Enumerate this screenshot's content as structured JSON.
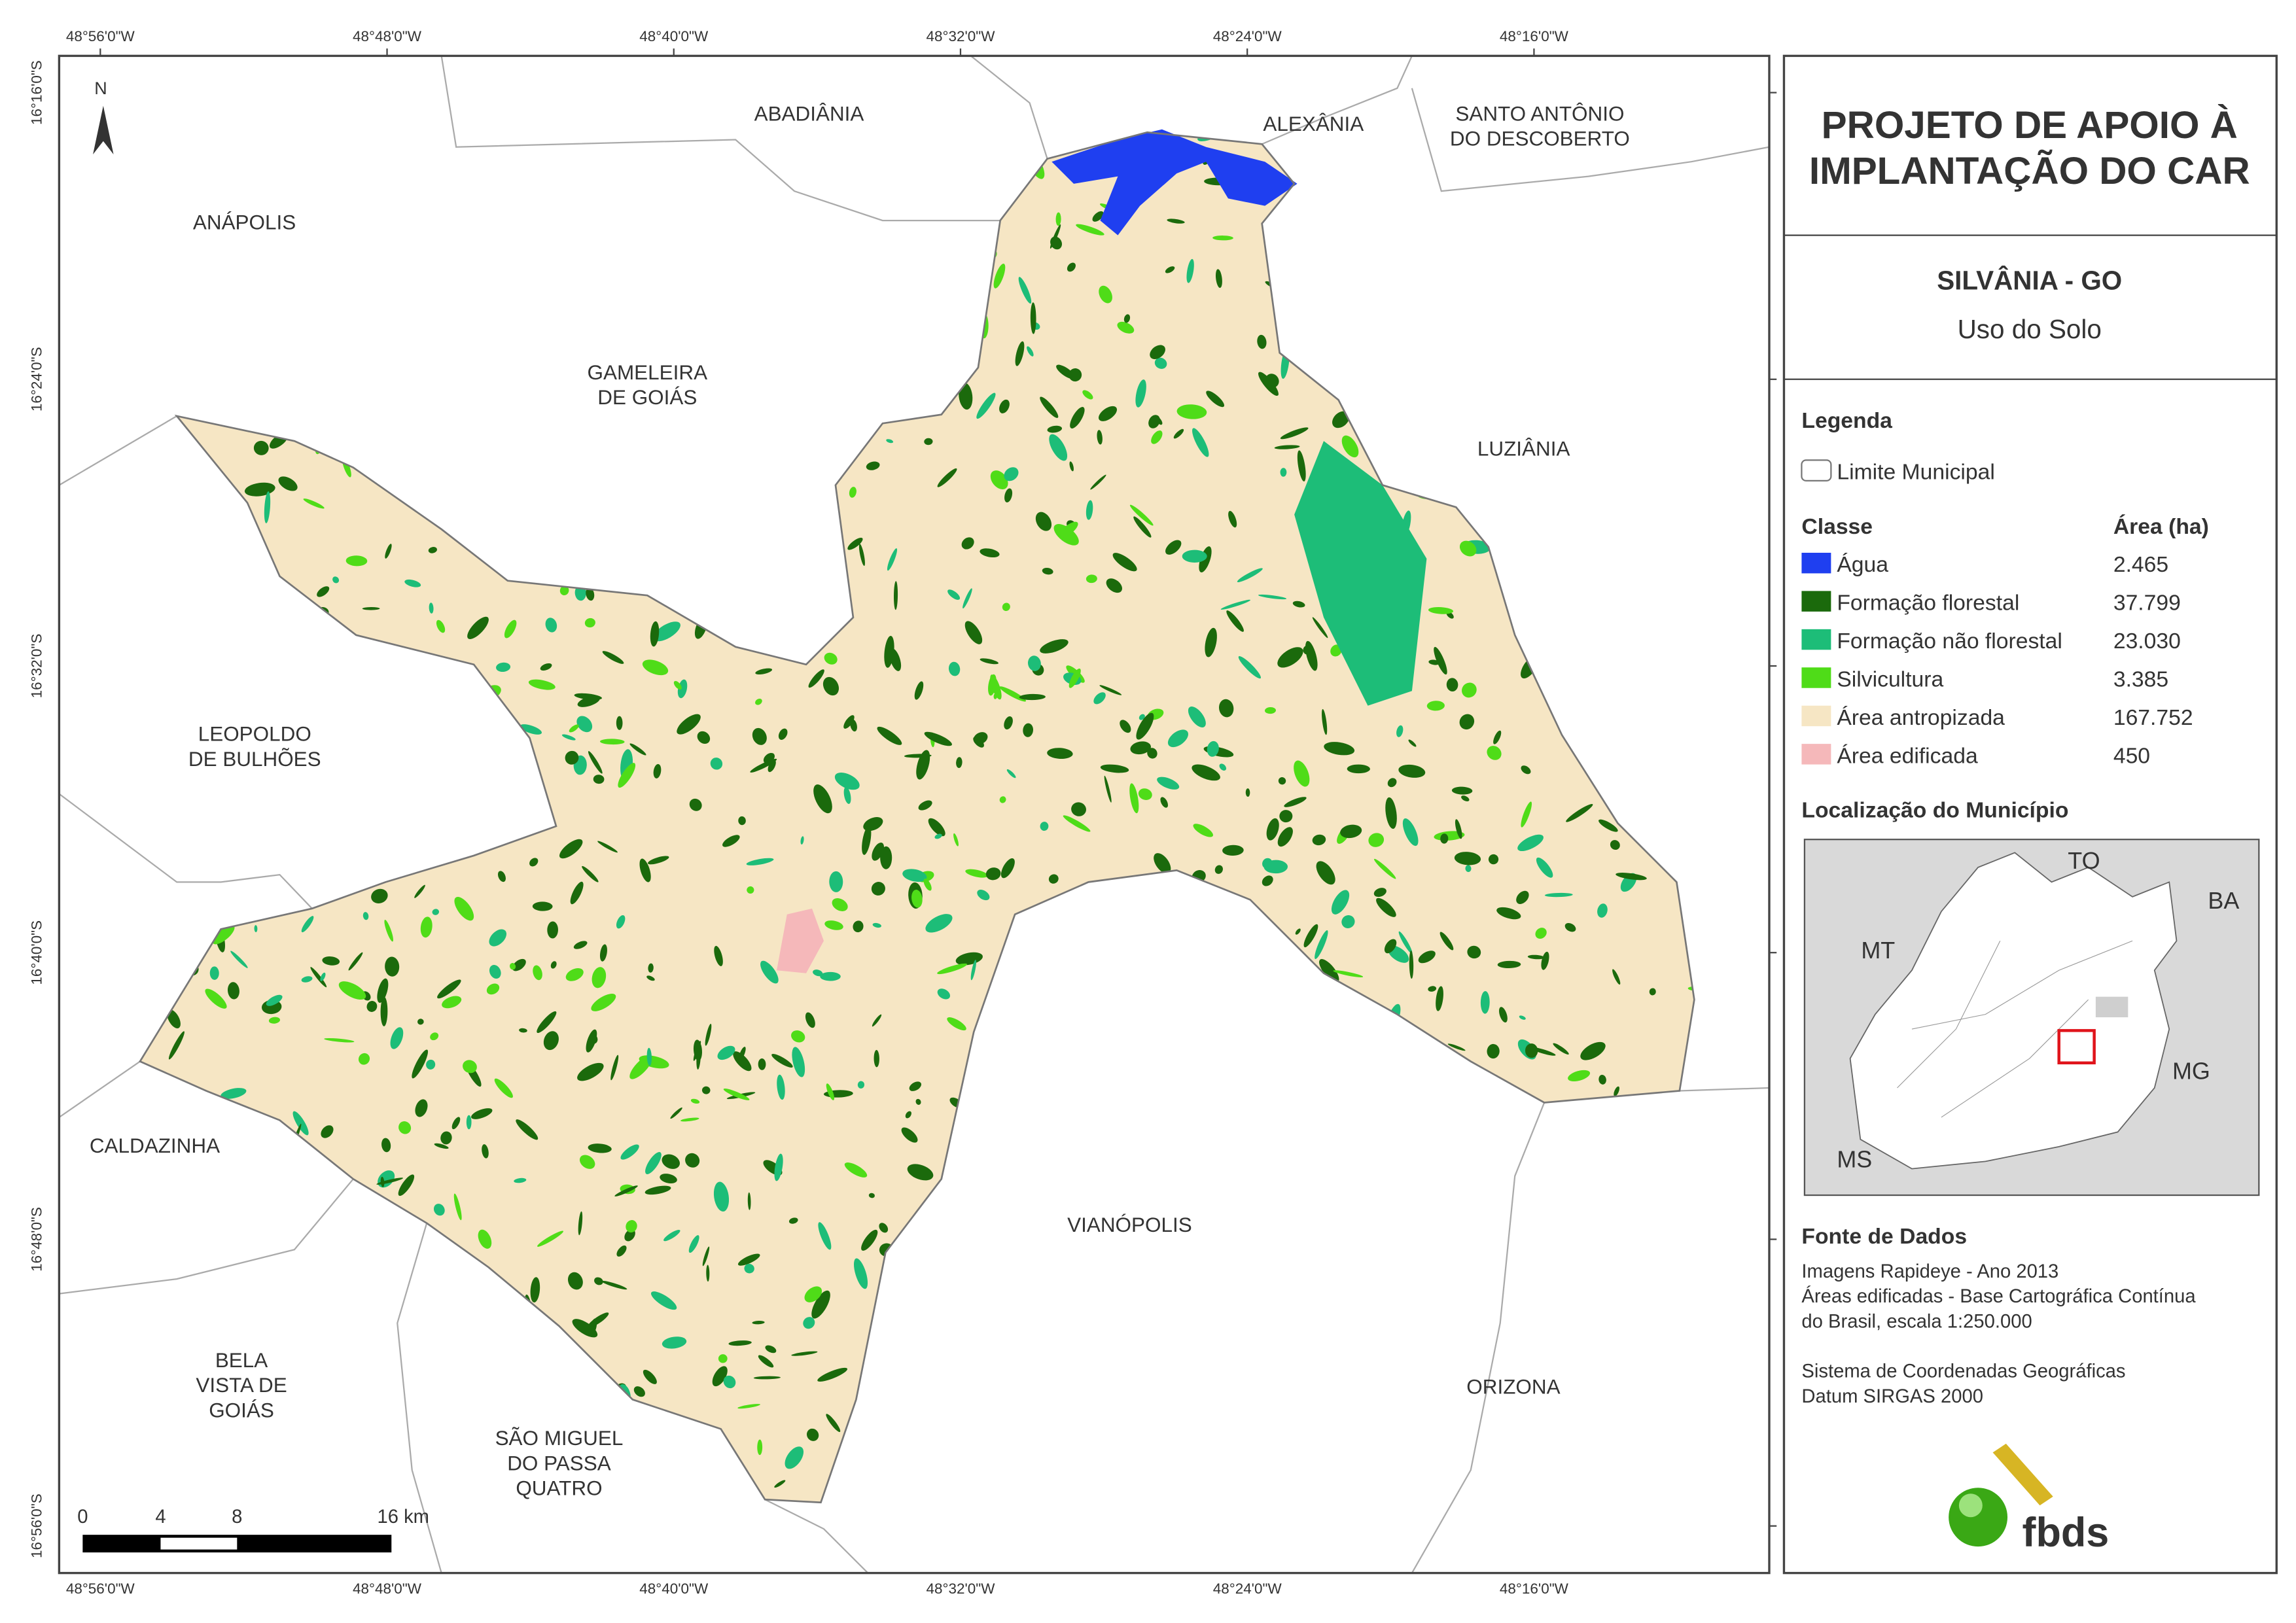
{
  "map": {
    "coordinates_x": [
      "48°56'0\"W",
      "48°48'0\"W",
      "48°40'0\"W",
      "48°32'0\"W",
      "48°24'0\"W",
      "48°16'0\"W"
    ],
    "coordinates_y": [
      "16°16'0\"S",
      "16°24'0\"S",
      "16°32'0\"S",
      "16°40'0\"S",
      "16°48'0\"S",
      "16°56'0\"S"
    ],
    "north": "N",
    "municipalities": [
      {
        "lines": [
          "ABADIÂNIA"
        ]
      },
      {
        "lines": [
          "ALEXÂNIA"
        ]
      },
      {
        "lines": [
          "SANTO ANTÔNIO",
          "DO DESCOBERTO"
        ]
      },
      {
        "lines": [
          "ANÁPOLIS"
        ]
      },
      {
        "lines": [
          "GAMELEIRA",
          "DE GOIÁS"
        ]
      },
      {
        "lines": [
          "LUZIÂNIA"
        ]
      },
      {
        "lines": [
          "LEOPOLDO",
          "DE BULHÕES"
        ]
      },
      {
        "lines": [
          "CALDAZINHA"
        ]
      },
      {
        "lines": [
          "VIANÓPOLIS"
        ]
      },
      {
        "lines": [
          "ORIZONA"
        ]
      },
      {
        "lines": [
          "BELA",
          "VISTA DE",
          "GOIÁS"
        ]
      },
      {
        "lines": [
          "SÃO MIGUEL",
          "DO PASSA",
          "QUATRO"
        ]
      }
    ],
    "scale_bar": [
      "0",
      "4",
      "8",
      "16 km"
    ]
  },
  "panel": {
    "title": [
      "PROJETO DE APOIO À",
      "IMPLANTAÇÃO DO CAR"
    ],
    "subtitle": "SILVÂNIA - GO",
    "theme": "Uso do Solo",
    "legend": {
      "heading": "Legenda",
      "boundary": "Limite Municipal",
      "class_header": "Classe",
      "area_header": "Área (ha)",
      "classes": [
        {
          "name": "Água",
          "area": "2.465",
          "color": "#1f3ff0"
        },
        {
          "name": "Formação florestal",
          "area": "37.799",
          "color": "#1b6a0c"
        },
        {
          "name": "Formação não florestal",
          "area": "23.030",
          "color": "#1dbd78"
        },
        {
          "name": "Silvicultura",
          "area": "3.385",
          "color": "#4fdc18"
        },
        {
          "name": "Área antropizada",
          "area": "167.752",
          "color": "#f6e6c4"
        },
        {
          "name": "Área edificada",
          "area": "450",
          "color": "#f5b8ba"
        }
      ]
    },
    "location": {
      "heading": "Localização do Município",
      "labels": [
        "TO",
        "BA",
        "MT",
        "MG",
        "MS"
      ]
    },
    "sources": {
      "heading": "Fonte de Dados",
      "lines": [
        "Imagens Rapideye - Ano 2013",
        "Áreas edificadas - Base Cartográfica Contínua",
        "do Brasil, escala 1:250.000",
        "",
        "Sistema de Coordenadas Geográficas",
        "Datum SIRGAS 2000"
      ]
    },
    "logo": "fbds"
  }
}
